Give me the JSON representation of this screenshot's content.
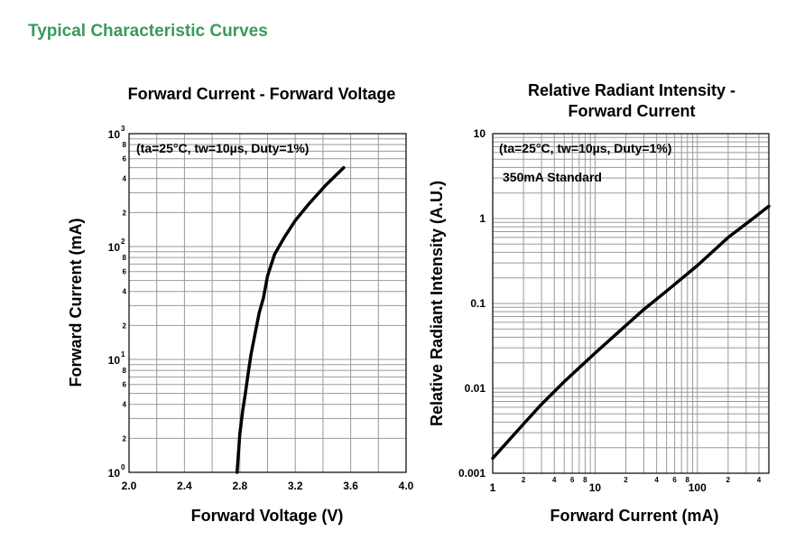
{
  "section_title": "Typical Characteristic Curves",
  "chart_data": [
    {
      "type": "line",
      "title": "Forward Current - Forward Voltage",
      "xlabel": "Forward Voltage (V)",
      "ylabel": "Forward Current (mA)",
      "annotation": "(ta=25°C, tw=10µs, Duty=1%)",
      "x_scale": "linear",
      "y_scale": "log",
      "xlim": [
        2.0,
        4.0
      ],
      "ylim": [
        1,
        1000
      ],
      "x_ticks": [
        "2.0",
        "2.4",
        "2.8",
        "3.2",
        "3.6",
        "4.0"
      ],
      "y_ticks_major": [
        {
          "base": "10",
          "exp": "0",
          "value": 1
        },
        {
          "base": "10",
          "exp": "1",
          "value": 10
        },
        {
          "base": "10",
          "exp": "2",
          "value": 100
        },
        {
          "base": "10",
          "exp": "3",
          "value": 1000
        }
      ],
      "y_ticks_minor": [
        "2",
        "4",
        "6",
        "8"
      ],
      "grid": true,
      "series": [
        {
          "x": [
            2.78,
            2.79,
            2.8,
            2.82,
            2.84,
            2.86,
            2.88,
            2.91,
            2.94,
            2.97,
            3.0,
            3.05,
            3.12,
            3.2,
            3.3,
            3.42,
            3.55
          ],
          "values": [
            1,
            1.5,
            2.2,
            3.5,
            5,
            7.5,
            11,
            17,
            26,
            35,
            55,
            85,
            120,
            170,
            240,
            350,
            500
          ]
        }
      ]
    },
    {
      "type": "line",
      "title": "Relative Radiant Intensity - Forward Current",
      "xlabel": "Forward Current (mA)",
      "ylabel": "Relative Radiant Intensity (A.U.)",
      "annotation": "(ta=25°C, tw=10µs, Duty=1%)",
      "annotation2": "350mA Standard",
      "x_scale": "log",
      "y_scale": "log",
      "xlim": [
        1,
        500
      ],
      "ylim": [
        0.001,
        10
      ],
      "x_ticks_major": [
        {
          "label": "1",
          "value": 1
        },
        {
          "label": "10",
          "value": 10
        },
        {
          "label": "100",
          "value": 100
        }
      ],
      "x_ticks_minor": [
        {
          "label": "2",
          "value": 2
        },
        {
          "label": "4",
          "value": 4
        },
        {
          "label": "6",
          "value": 6
        },
        {
          "label": "8",
          "value": 8
        },
        {
          "label": "2",
          "value": 20
        },
        {
          "label": "4",
          "value": 40
        },
        {
          "label": "6",
          "value": 60
        },
        {
          "label": "8",
          "value": 80
        },
        {
          "label": "2",
          "value": 200
        },
        {
          "label": "4",
          "value": 400
        }
      ],
      "y_ticks": [
        {
          "label": "10",
          "value": 10
        },
        {
          "label": "1",
          "value": 1
        },
        {
          "label": "0.1",
          "value": 0.1
        },
        {
          "label": "0.01",
          "value": 0.01
        },
        {
          "label": "0.001",
          "value": 0.001
        }
      ],
      "grid": true,
      "series": [
        {
          "x": [
            1,
            2,
            3,
            5,
            10,
            20,
            30,
            50,
            100,
            200,
            350,
            500
          ],
          "values": [
            0.0015,
            0.0038,
            0.0065,
            0.012,
            0.026,
            0.055,
            0.085,
            0.14,
            0.28,
            0.6,
            1.0,
            1.4
          ]
        }
      ]
    }
  ]
}
